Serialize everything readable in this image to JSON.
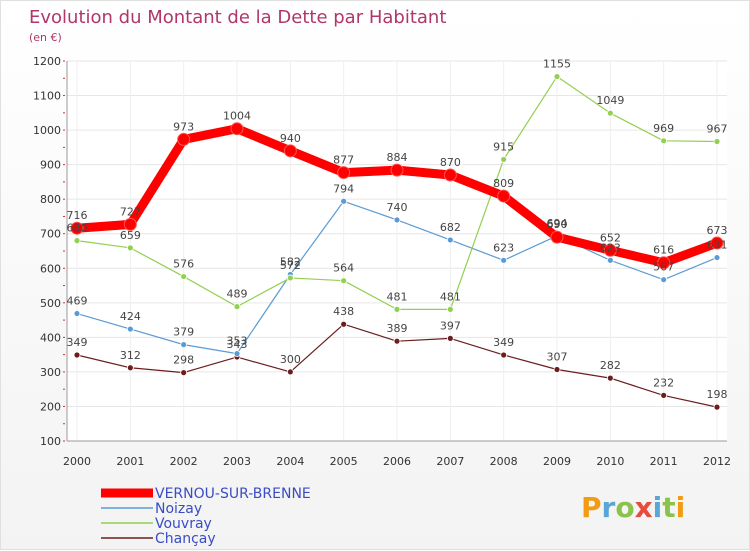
{
  "chart_data": {
    "type": "line",
    "title": "Evolution du Montant de la Dette par Habitant",
    "subtitle": "(en €)",
    "x": [
      "2000",
      "2001",
      "2002",
      "2003",
      "2004",
      "2005",
      "2006",
      "2007",
      "2008",
      "2009",
      "2010",
      "2011",
      "2012"
    ],
    "ylim": [
      100,
      1200
    ],
    "yticks": [
      100,
      200,
      300,
      400,
      500,
      600,
      700,
      800,
      900,
      1000,
      1100,
      1200
    ],
    "grid": true,
    "legend_position": "bottom-left",
    "series": [
      {
        "name": "Chançay",
        "color": "#6b1e1e",
        "values": [
          349,
          312,
          298,
          343,
          300,
          438,
          389,
          397,
          349,
          307,
          282,
          232,
          198
        ]
      },
      {
        "name": "Noizay",
        "color": "#5b9bd5",
        "values": [
          469,
          424,
          379,
          353,
          582,
          794,
          740,
          682,
          623,
          694,
          623,
          567,
          631
        ]
      },
      {
        "name": "Vouvray",
        "color": "#92d050",
        "values": [
          680,
          659,
          576,
          489,
          572,
          564,
          481,
          481,
          915,
          1155,
          1049,
          969,
          967
        ]
      },
      {
        "name": "VERNOU-SUR-BRENNE",
        "color": "#ff0000",
        "values": [
          716,
          727,
          973,
          1004,
          940,
          877,
          884,
          870,
          809,
          690,
          652,
          616,
          673
        ]
      }
    ]
  },
  "legend": {
    "items": [
      "VERNOU-SUR-BRENNE",
      "Noizay",
      "Vouvray",
      "Chançay"
    ]
  },
  "logo": {
    "text": "Proxiti"
  }
}
